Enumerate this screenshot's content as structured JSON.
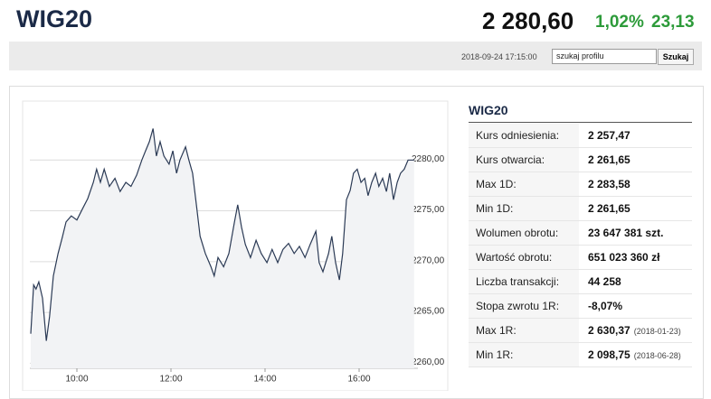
{
  "header": {
    "title": "WIG20",
    "price": "2 280,60",
    "change_pct": "1,02%",
    "change": "23,13"
  },
  "toolbar": {
    "timestamp": "2018-09-24 17:15:00",
    "search_placeholder": "szukaj profilu",
    "search_button": "Szukaj"
  },
  "chart": {
    "type": "line",
    "color": "#2b3a55",
    "grid": true,
    "x": [
      9.02,
      9.08,
      9.13,
      9.19,
      9.27,
      9.35,
      9.42,
      9.5,
      9.6,
      9.69,
      9.77,
      9.88,
      10.0,
      10.12,
      10.23,
      10.35,
      10.42,
      10.5,
      10.58,
      10.69,
      10.81,
      10.92,
      11.04,
      11.15,
      11.27,
      11.38,
      11.46,
      11.54,
      11.62,
      11.69,
      11.77,
      11.85,
      11.96,
      12.04,
      12.12,
      12.19,
      12.31,
      12.38,
      12.46,
      12.54,
      12.62,
      12.73,
      12.85,
      12.92,
      13.0,
      13.12,
      13.23,
      13.35,
      13.42,
      13.5,
      13.58,
      13.69,
      13.81,
      13.92,
      14.04,
      14.15,
      14.27,
      14.38,
      14.5,
      14.62,
      14.73,
      14.85,
      14.96,
      15.08,
      15.15,
      15.23,
      15.35,
      15.42,
      15.5,
      15.58,
      15.65,
      15.73,
      15.81,
      15.88,
      15.96,
      16.04,
      16.12,
      16.19,
      16.27,
      16.35,
      16.42,
      16.5,
      16.58,
      16.65,
      16.73,
      16.81,
      16.88,
      16.96,
      17.04,
      17.17
    ],
    "values": [
      2262.9,
      2267.7,
      2267.3,
      2268.0,
      2266.4,
      2262.2,
      2264.6,
      2268.6,
      2270.8,
      2272.4,
      2273.9,
      2274.5,
      2274.1,
      2275.2,
      2276.2,
      2277.8,
      2279.1,
      2277.8,
      2279.1,
      2277.4,
      2278.2,
      2276.9,
      2277.8,
      2277.4,
      2278.5,
      2280.0,
      2280.9,
      2281.8,
      2283.1,
      2280.4,
      2281.8,
      2280.4,
      2279.6,
      2280.9,
      2278.7,
      2280.0,
      2281.3,
      2280.0,
      2278.7,
      2275.6,
      2272.5,
      2270.8,
      2269.5,
      2268.6,
      2270.4,
      2269.5,
      2270.8,
      2273.9,
      2275.6,
      2273.4,
      2271.7,
      2270.4,
      2272.1,
      2270.8,
      2269.9,
      2271.2,
      2269.9,
      2271.2,
      2271.8,
      2270.8,
      2271.5,
      2270.4,
      2271.7,
      2273.0,
      2269.9,
      2269.0,
      2270.8,
      2272.5,
      2269.9,
      2268.2,
      2270.8,
      2276.1,
      2277.0,
      2278.7,
      2279.1,
      2277.8,
      2278.2,
      2276.5,
      2277.8,
      2278.7,
      2277.4,
      2278.2,
      2276.9,
      2278.7,
      2276.1,
      2277.8,
      2278.7,
      2279.1,
      2280.0,
      2280.0
    ],
    "xlim": [
      9,
      17.25
    ],
    "ylim": [
      2259.5,
      2285
    ],
    "xticks": [
      {
        "value": 10,
        "label": "10:00"
      },
      {
        "value": 12,
        "label": "12:00"
      },
      {
        "value": 14,
        "label": "14:00"
      },
      {
        "value": 16,
        "label": "16:00"
      }
    ],
    "yticks": [
      {
        "value": 2260,
        "label": "2260,00"
      },
      {
        "value": 2265,
        "label": "2265,00"
      },
      {
        "value": 2270,
        "label": "2270,00"
      },
      {
        "value": 2275,
        "label": "2275,00"
      },
      {
        "value": 2280,
        "label": "2280,00"
      }
    ]
  },
  "table": {
    "title": "WIG20",
    "rows": [
      [
        "Kurs odniesienia:",
        "2 257,47"
      ],
      [
        "Kurs otwarcia:",
        "2 261,65"
      ],
      [
        "Max 1D:",
        "2 283,58"
      ],
      [
        "Min 1D:",
        "2 261,65"
      ],
      [
        "Wolumen obrotu:",
        "23 647 381 szt."
      ],
      [
        "Wartość obrotu:",
        "651 023 360 zł"
      ],
      [
        "Liczba transakcji:",
        "44 258"
      ],
      [
        "Stopa zwrotu 1R:",
        "-8,07%"
      ],
      [
        "Max 1R:",
        "2 630,37",
        "(2018-01-23)"
      ],
      [
        "Min 1R:",
        "2 098,75",
        "(2018-06-28)"
      ]
    ]
  }
}
